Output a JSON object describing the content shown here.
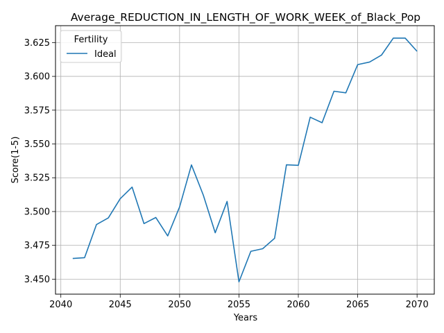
{
  "chart_data": {
    "type": "line",
    "title": "Average_REDUCTION_IN_LENGTH_OF_WORK_WEEK_of_Black_Pop",
    "xlabel": "Years",
    "ylabel": "Score(1-5)",
    "xlim": [
      2039.55,
      2071.45
    ],
    "ylim": [
      3.4389,
      3.6375
    ],
    "x_ticks": [
      2040,
      2045,
      2050,
      2055,
      2060,
      2065,
      2070
    ],
    "y_ticks": [
      3.45,
      3.475,
      3.5,
      3.525,
      3.55,
      3.575,
      3.6,
      3.625
    ],
    "grid": true,
    "legend": {
      "title": "Fertility",
      "placement": "upper-left"
    },
    "series": [
      {
        "name": "Ideal",
        "color": "#1f77b4",
        "x": [
          2041,
          2042,
          2043,
          2044,
          2045,
          2046,
          2047,
          2048,
          2049,
          2050,
          2051,
          2052,
          2053,
          2054,
          2055,
          2056,
          2057,
          2058,
          2059,
          2060,
          2061,
          2062,
          2063,
          2064,
          2065,
          2066,
          2067,
          2068,
          2069,
          2070
        ],
        "y": [
          3.4653,
          3.4659,
          3.4904,
          3.4953,
          3.5095,
          3.5181,
          3.4911,
          3.4956,
          3.482,
          3.5034,
          3.5345,
          3.5121,
          3.4843,
          3.5075,
          3.448,
          3.4706,
          3.4725,
          3.4802,
          3.5346,
          3.5342,
          3.5698,
          3.5657,
          3.589,
          3.5878,
          3.6087,
          3.6106,
          3.6157,
          3.6283,
          3.6283,
          3.6185
        ]
      }
    ]
  }
}
